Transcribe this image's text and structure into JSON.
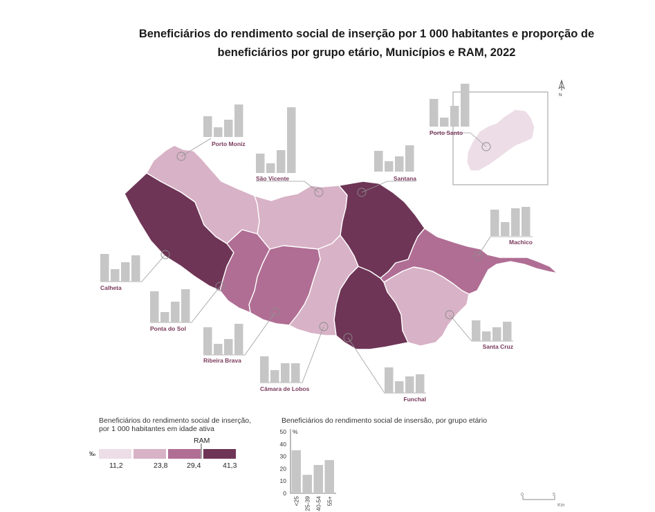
{
  "title": "Beneficiários do rendimento social de inserção por 1 000 habitantes e proporção de beneficiários por grupo etário, Municípios e RAM, 2022",
  "colors": {
    "class1": "#eddde6",
    "class2": "#d8b2c6",
    "class3": "#b06e94",
    "class4": "#6e3556",
    "bar": "#c6c6c6",
    "label": "#7a3a5c",
    "leader": "#9a9a9a"
  },
  "municipalities": [
    {
      "name": "Porto Moniz",
      "class": 2,
      "bars": [
        30,
        14,
        25,
        47
      ]
    },
    {
      "name": "São Vicente",
      "class": 2,
      "bars": [
        28,
        14,
        33,
        95
      ]
    },
    {
      "name": "Santana",
      "class": 4,
      "bars": [
        30,
        15,
        22,
        38
      ]
    },
    {
      "name": "Porto Santo",
      "class": 1,
      "bars": [
        40,
        13,
        30,
        62
      ]
    },
    {
      "name": "Machico",
      "class": 3,
      "bars": [
        38,
        20,
        40,
        42
      ]
    },
    {
      "name": "Calheta",
      "class": 4,
      "bars": [
        40,
        18,
        28,
        38
      ]
    },
    {
      "name": "Ponta do Sol",
      "class": 3,
      "bars": [
        45,
        15,
        30,
        48
      ]
    },
    {
      "name": "Ribeira Brava",
      "class": 3,
      "bars": [
        40,
        16,
        23,
        45
      ]
    },
    {
      "name": "Câmara de Lobos",
      "class": 2,
      "bars": [
        38,
        18,
        28,
        28
      ]
    },
    {
      "name": "Funchal",
      "class": 4,
      "bars": [
        37,
        17,
        24,
        27
      ]
    },
    {
      "name": "Santa Cruz",
      "class": 2,
      "bars": [
        30,
        14,
        20,
        28
      ]
    }
  ],
  "legend": {
    "title_line1": "Beneficiários do rendimento social de inserção,",
    "title_line2": "por 1 000 habitantes em idade ativa",
    "unit": "‰",
    "ram_label": "RAM",
    "breaks": [
      "11,2",
      "23,8",
      "29,4",
      "41,3"
    ]
  },
  "age_chart": {
    "title": "Beneficiários do rendimento social de insersão, por grupo etário",
    "unit": "%",
    "yticks": [
      "50",
      "40",
      "30",
      "20",
      "10",
      "0"
    ],
    "categories": [
      "<25",
      "25-39",
      "40-54",
      "55+"
    ]
  },
  "chart_data": {
    "type": "bar",
    "title": "Beneficiários do rendimento social de insersão, por grupo etário",
    "categories": [
      "<25",
      "25-39",
      "40-54",
      "55+"
    ],
    "values": [
      35,
      15,
      23,
      27
    ],
    "ylabel": "%",
    "ylim": [
      0,
      50
    ]
  },
  "scale": {
    "zero": "0",
    "five": "5",
    "unit": "Km"
  },
  "north": "N"
}
